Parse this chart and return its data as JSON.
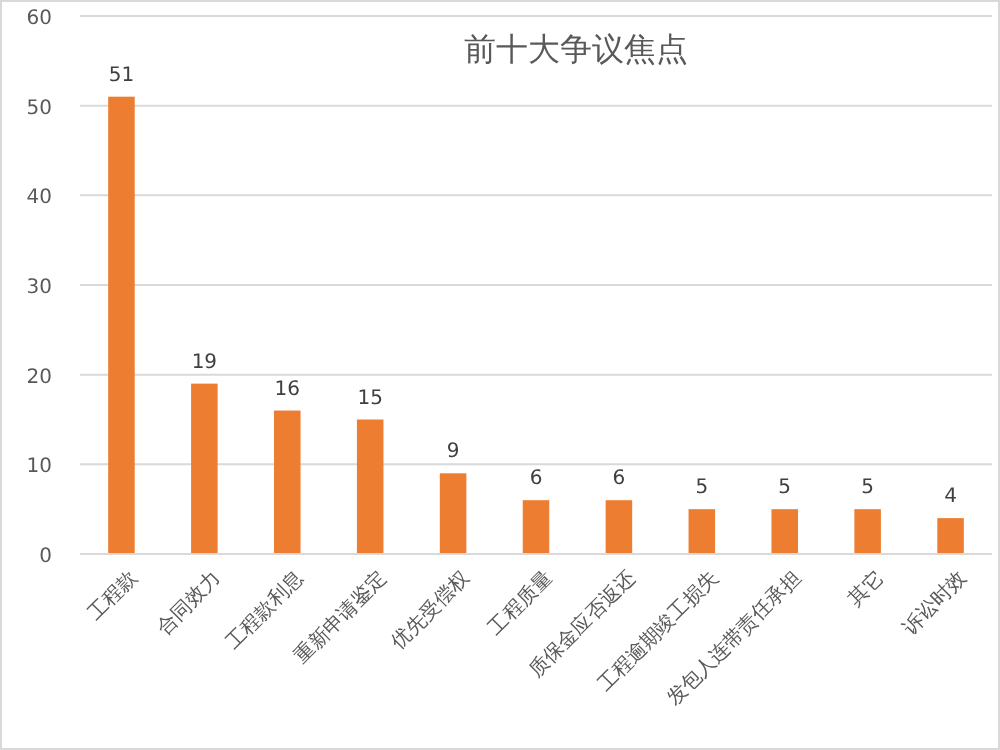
{
  "chart_data": {
    "type": "bar",
    "title": "前十大争议焦点",
    "categories": [
      "工程款",
      "合同效力",
      "工程款利息",
      "重新申请鉴定",
      "优先受偿权",
      "工程质量",
      "质保金应否返还",
      "工程逾期竣工损失",
      "发包人连带责任承担",
      "其它",
      "诉讼时效"
    ],
    "values": [
      51,
      19,
      16,
      15,
      9,
      6,
      6,
      5,
      5,
      5,
      4
    ],
    "color": "#ed7d31",
    "ylim": [
      0,
      60
    ],
    "yticks": [
      0,
      10,
      20,
      30,
      40,
      50,
      60
    ],
    "grid": "y",
    "data_labels": true
  }
}
